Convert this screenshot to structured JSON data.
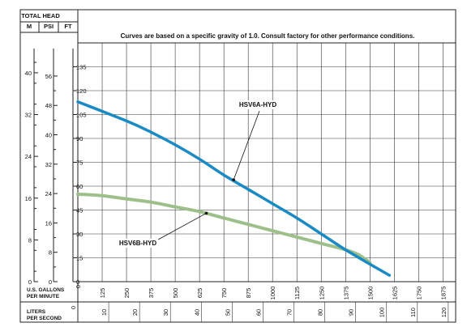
{
  "chart_data": {
    "type": "line",
    "note": "Curves are based on a specific gravity of 1.0. Consult factory for other performance conditions.",
    "header": {
      "title": "TOTAL HEAD",
      "units": [
        "M",
        "PSI",
        "FT"
      ]
    },
    "left_axes": {
      "m": {
        "ticks": [
          0,
          8,
          16,
          24,
          32,
          40
        ]
      },
      "psi": {
        "ticks": [
          0,
          8,
          16,
          24,
          32,
          40,
          48,
          56
        ]
      },
      "ft": {
        "ticks": [
          0,
          15,
          30,
          45,
          60,
          75,
          90,
          105,
          120,
          135
        ],
        "range": [
          0,
          150
        ]
      }
    },
    "x_axis": {
      "label_lines": [
        "U.S. GALLONS",
        "PER MINUTE"
      ],
      "ticks": [
        0,
        125,
        250,
        375,
        500,
        625,
        750,
        875,
        1000,
        1125,
        1250,
        1375,
        1500,
        1625,
        1750,
        1875
      ],
      "range": [
        0,
        1940
      ]
    },
    "x2_axis": {
      "label_lines": [
        "LITERS",
        "PER SECOND"
      ],
      "ticks": [
        0,
        10,
        20,
        30,
        40,
        50,
        60,
        70,
        80,
        90,
        100,
        110,
        120
      ]
    },
    "series": [
      {
        "name": "HSV6A-HYD",
        "color": "#1a8ac4",
        "points": [
          [
            0,
            113
          ],
          [
            250,
            101
          ],
          [
            375,
            94
          ],
          [
            500,
            86
          ],
          [
            625,
            77
          ],
          [
            750,
            67
          ],
          [
            875,
            58
          ],
          [
            1000,
            49
          ],
          [
            1125,
            40
          ],
          [
            1250,
            30
          ],
          [
            1375,
            20
          ],
          [
            1500,
            11
          ],
          [
            1600,
            4
          ]
        ]
      },
      {
        "name": "HSV6B-HYD",
        "color": "#9dc08b",
        "points": [
          [
            0,
            55
          ],
          [
            125,
            54
          ],
          [
            250,
            52
          ],
          [
            375,
            50
          ],
          [
            500,
            47
          ],
          [
            625,
            44
          ],
          [
            750,
            40
          ],
          [
            875,
            36
          ],
          [
            1000,
            32
          ],
          [
            1125,
            28
          ],
          [
            1250,
            24
          ],
          [
            1375,
            20
          ],
          [
            1440,
            17
          ],
          [
            1500,
            12
          ]
        ]
      }
    ],
    "series_labels": [
      {
        "series": 0,
        "text": "HSV6A-HYD",
        "point": [
          800,
          64
        ]
      },
      {
        "series": 1,
        "text": "HSV6B-HYD",
        "point": [
          660,
          43
        ]
      }
    ]
  }
}
